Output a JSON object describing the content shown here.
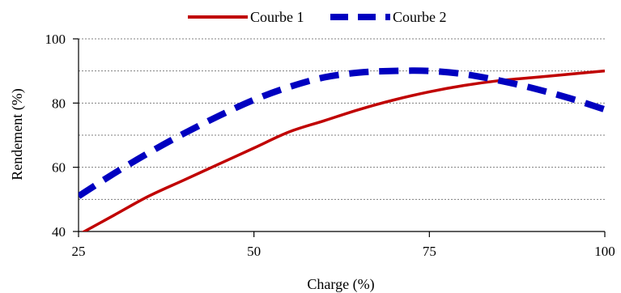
{
  "chart_data": {
    "type": "line",
    "title": "",
    "xlabel": "Charge (%)",
    "ylabel": "Rendement (%)",
    "xlim": [
      25,
      100
    ],
    "ylim": [
      40,
      100
    ],
    "xticks": [
      25,
      50,
      75,
      100
    ],
    "yticks": [
      40,
      60,
      80,
      100
    ],
    "minor_gridlines": [
      50,
      70,
      90
    ],
    "grid": true,
    "legend_position": "top",
    "series": [
      {
        "name": "Courbe 1",
        "color": "#C00000",
        "style": "solid",
        "points": [
          [
            25,
            39
          ],
          [
            30,
            45
          ],
          [
            35,
            51
          ],
          [
            40,
            56
          ],
          [
            45,
            61
          ],
          [
            50,
            66
          ],
          [
            55,
            71
          ],
          [
            60,
            74.5
          ],
          [
            65,
            78
          ],
          [
            70,
            81
          ],
          [
            75,
            83.5
          ],
          [
            80,
            85.5
          ],
          [
            85,
            87
          ],
          [
            90,
            88
          ],
          [
            95,
            89
          ],
          [
            100,
            90
          ]
        ]
      },
      {
        "name": "Courbe 2",
        "color": "#0000C0",
        "style": "dashed",
        "points": [
          [
            25,
            51
          ],
          [
            30,
            58
          ],
          [
            35,
            64.5
          ],
          [
            40,
            70.5
          ],
          [
            45,
            76
          ],
          [
            50,
            81
          ],
          [
            55,
            85
          ],
          [
            60,
            88
          ],
          [
            65,
            89.5
          ],
          [
            70,
            90
          ],
          [
            75,
            90
          ],
          [
            80,
            89
          ],
          [
            85,
            87
          ],
          [
            90,
            84.5
          ],
          [
            95,
            81.5
          ],
          [
            100,
            78
          ]
        ]
      }
    ]
  }
}
